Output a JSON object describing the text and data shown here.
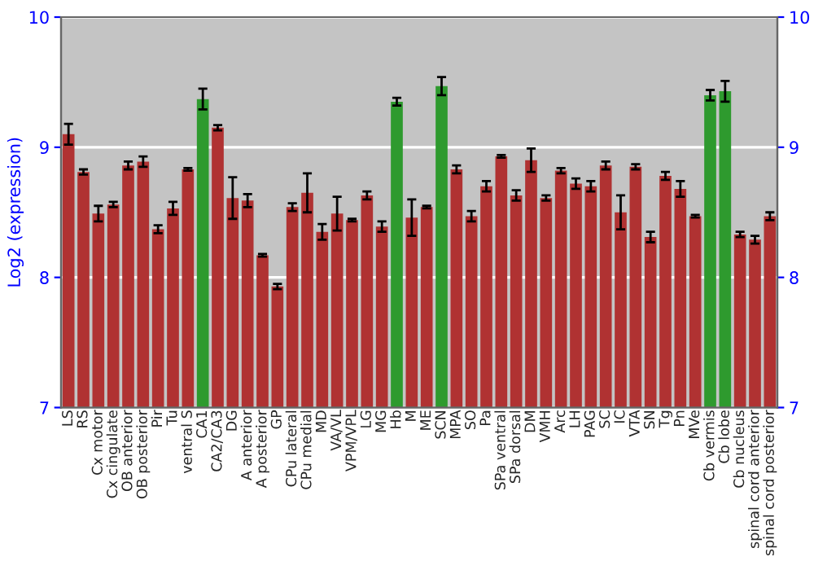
{
  "chart_data": {
    "type": "bar",
    "ylabel": "Log2 (expression)",
    "categories": [
      "LS",
      "RS",
      "Cx motor",
      "Cx cingulate",
      "OB anterior",
      "OB posterior",
      "Pir",
      "Tu",
      "ventral S",
      "CA1",
      "CA2/CA3",
      "DG",
      "A anterior",
      "A posterior",
      "GP",
      "CPu lateral",
      "CPu medial",
      "MD",
      "VA/VL",
      "VPM/VPL",
      "LG",
      "MG",
      "Hb",
      "M",
      "ME",
      "SCN",
      "MPA",
      "SO",
      "Pa",
      "SPa ventral",
      "SPa dorsal",
      "DM",
      "VMH",
      "Arc",
      "LH",
      "PAG",
      "SC",
      "IC",
      "VTA",
      "SN",
      "Tg",
      "Pn",
      "MVe",
      "Cb vermis",
      "Cb lobe",
      "Cb nucleus",
      "spinal cord anterior",
      "spinal cord posterior"
    ],
    "values": [
      9.1,
      8.81,
      8.49,
      8.56,
      8.86,
      8.89,
      8.37,
      8.53,
      8.83,
      9.37,
      9.15,
      8.61,
      8.59,
      8.17,
      7.93,
      8.54,
      8.65,
      8.35,
      8.49,
      8.44,
      8.63,
      8.39,
      9.35,
      8.46,
      8.54,
      9.47,
      8.83,
      8.47,
      8.7,
      8.93,
      8.63,
      8.9,
      8.61,
      8.82,
      8.72,
      8.7,
      8.86,
      8.5,
      8.85,
      8.31,
      8.78,
      8.68,
      8.47,
      9.4,
      9.43,
      8.33,
      8.29,
      8.47
    ],
    "errors": [
      0.08,
      0.02,
      0.06,
      0.02,
      0.03,
      0.04,
      0.03,
      0.05,
      0.01,
      0.08,
      0.02,
      0.16,
      0.05,
      0.01,
      0.02,
      0.03,
      0.15,
      0.06,
      0.13,
      0.01,
      0.03,
      0.04,
      0.03,
      0.14,
      0.01,
      0.07,
      0.03,
      0.04,
      0.04,
      0.01,
      0.04,
      0.09,
      0.02,
      0.02,
      0.04,
      0.04,
      0.03,
      0.13,
      0.02,
      0.04,
      0.03,
      0.06,
      0.01,
      0.04,
      0.08,
      0.02,
      0.03,
      0.03
    ],
    "colors": [
      "#b03232",
      "#b03232",
      "#b03232",
      "#b03232",
      "#b03232",
      "#b03232",
      "#b03232",
      "#b03232",
      "#b03232",
      "#2e9a2e",
      "#b03232",
      "#b03232",
      "#b03232",
      "#b03232",
      "#b03232",
      "#b03232",
      "#b03232",
      "#b03232",
      "#b03232",
      "#b03232",
      "#b03232",
      "#b03232",
      "#2e9a2e",
      "#b03232",
      "#b03232",
      "#2e9a2e",
      "#b03232",
      "#b03232",
      "#b03232",
      "#b03232",
      "#b03232",
      "#b03232",
      "#b03232",
      "#b03232",
      "#b03232",
      "#b03232",
      "#b03232",
      "#b03232",
      "#b03232",
      "#b03232",
      "#b03232",
      "#b03232",
      "#b03232",
      "#2e9a2e",
      "#2e9a2e",
      "#b03232",
      "#b03232",
      "#b03232"
    ],
    "ylim": [
      7,
      10
    ],
    "yticks": [
      7,
      8,
      9,
      10
    ],
    "y2lim": [
      7,
      10
    ],
    "y2ticks": [
      7,
      8,
      9,
      10
    ],
    "grid": "y"
  }
}
